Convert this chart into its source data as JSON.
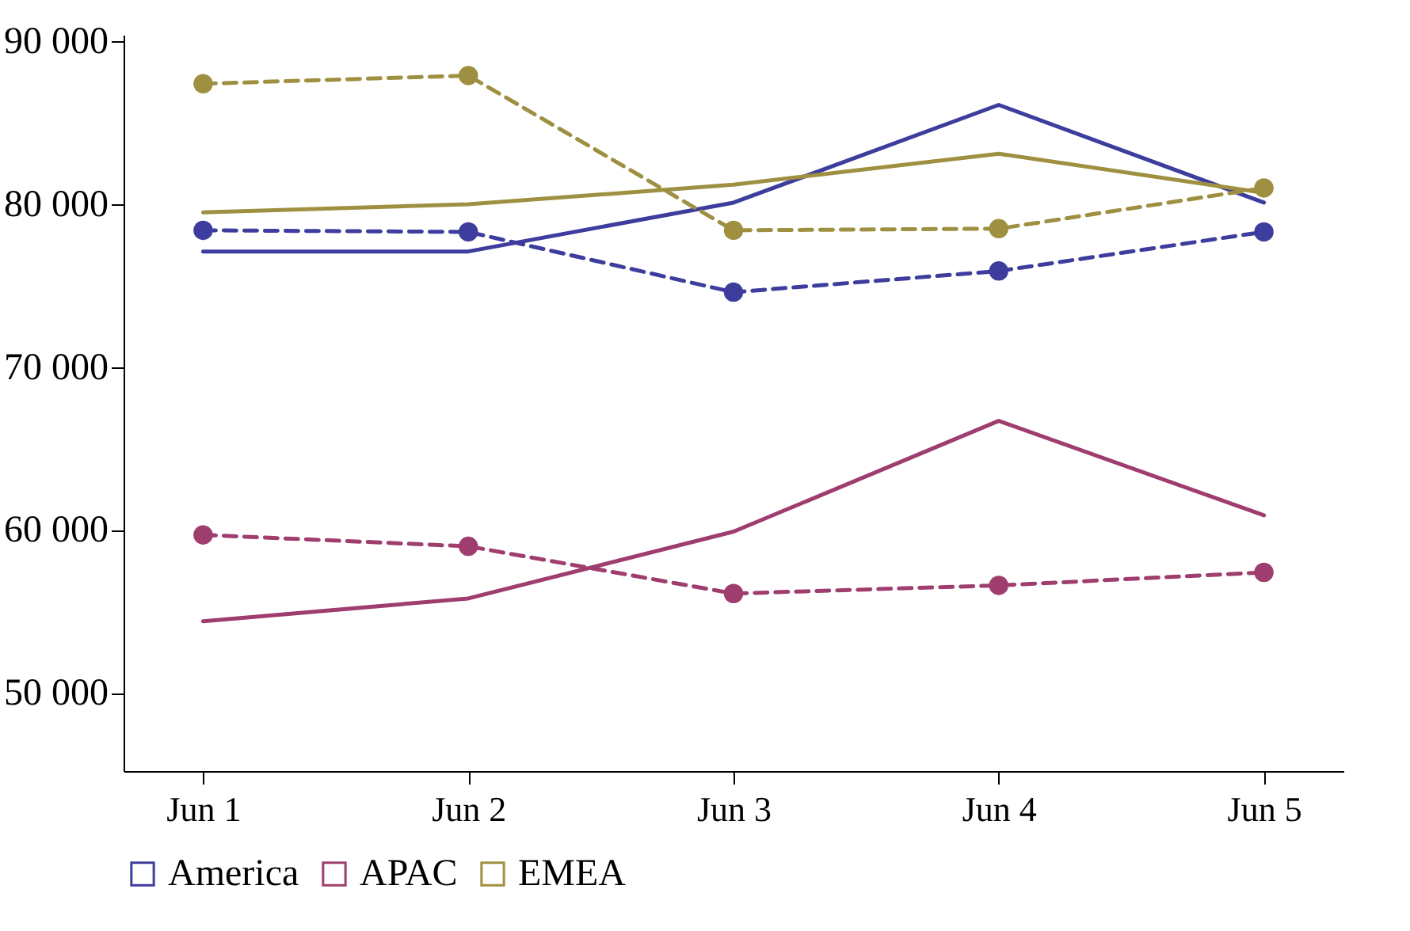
{
  "chart_data": {
    "type": "line",
    "categories": [
      "Jun 1",
      "Jun 2",
      "Jun 3",
      "Jun 4",
      "Jun 5"
    ],
    "series": [
      {
        "name": "America",
        "color": "#3d3d9e",
        "values": [
          77100,
          77100,
          80100,
          86100,
          80100
        ]
      },
      {
        "name": "APAC",
        "color": "#9e3d6e",
        "values": [
          54400,
          55800,
          59900,
          66700,
          60900
        ]
      },
      {
        "name": "EMEA",
        "color": "#9e9040",
        "values": [
          79500,
          80000,
          81200,
          83100,
          80700
        ]
      },
      {
        "color": "#3d3d9e",
        "line_style": "dashed",
        "marker": "circle",
        "values": [
          78400,
          78300,
          74600,
          75900,
          78300
        ]
      },
      {
        "color": "#9e3d6e",
        "line_style": "dashed",
        "marker": "circle",
        "values": [
          59700,
          59000,
          56100,
          56600,
          57400
        ]
      },
      {
        "color": "#9e9040",
        "line_style": "dashed",
        "marker": "circle",
        "values": [
          87400,
          87900,
          78400,
          78500,
          81000
        ]
      }
    ],
    "ylim": [
      45200,
      90400
    ],
    "yticks": [
      {
        "value": 50000,
        "label": "50 000"
      },
      {
        "value": 60000,
        "label": "60 000"
      },
      {
        "value": 70000,
        "label": "70 000"
      },
      {
        "value": 80000,
        "label": "80 000"
      },
      {
        "value": 90000,
        "label": "90 000"
      }
    ],
    "grid": false,
    "legend": "bottom",
    "line_style": "solid",
    "marker": "none"
  }
}
